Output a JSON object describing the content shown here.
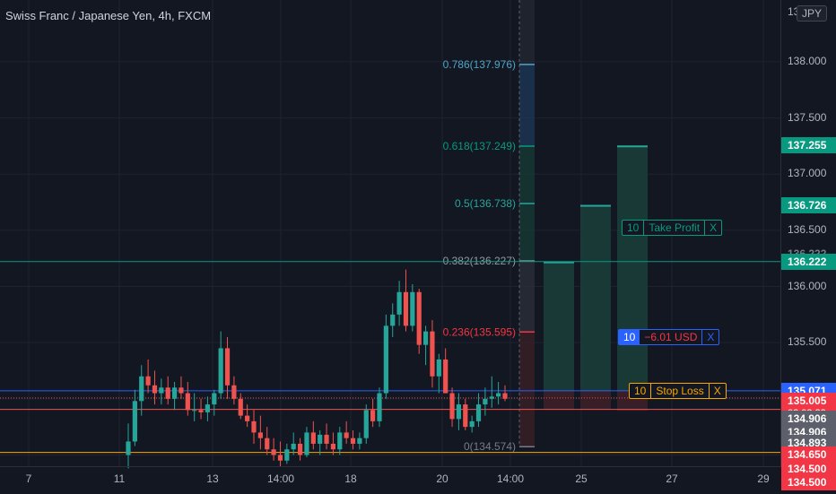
{
  "header": {
    "title": "Swiss Franc / Japanese Yen, 4h, FXCM",
    "currency_button": "JPY"
  },
  "colors": {
    "up": "#26a69a",
    "down": "#ef5350",
    "take_profit": "#089981",
    "stop_loss": "#f7a600",
    "position": "#2962ff",
    "fib_top": "#4fa3c7"
  },
  "chart_data": {
    "type": "candlestick",
    "title": "Swiss Franc / Japanese Yen, 4h, FXCM",
    "y_axis": {
      "ylim": [
        134.4,
        138.55
      ],
      "ticks": [
        "138.000",
        "137.500",
        "137.000",
        "136.500",
        "136.000",
        "135.500"
      ],
      "top_partial_label": "13"
    },
    "x_axis": {
      "ticks": [
        "7",
        "11",
        "13",
        "14:00",
        "18",
        "20",
        "14:00",
        "25",
        "27",
        "29"
      ]
    },
    "candles": [
      {
        "o": 134.5,
        "h": 134.78,
        "l": 134.38,
        "c": 134.62
      },
      {
        "o": 134.62,
        "h": 135.08,
        "l": 134.58,
        "c": 134.98
      },
      {
        "o": 134.98,
        "h": 135.3,
        "l": 134.85,
        "c": 135.2
      },
      {
        "o": 135.2,
        "h": 135.35,
        "l": 135.05,
        "c": 135.12
      },
      {
        "o": 135.12,
        "h": 135.25,
        "l": 134.95,
        "c": 135.05
      },
      {
        "o": 135.05,
        "h": 135.18,
        "l": 134.95,
        "c": 135.1
      },
      {
        "o": 135.1,
        "h": 135.2,
        "l": 134.95,
        "c": 135.0
      },
      {
        "o": 135.0,
        "h": 135.15,
        "l": 134.9,
        "c": 135.1
      },
      {
        "o": 135.1,
        "h": 135.2,
        "l": 135.0,
        "c": 135.05
      },
      {
        "o": 135.05,
        "h": 135.15,
        "l": 134.85,
        "c": 134.9
      },
      {
        "o": 134.9,
        "h": 135.05,
        "l": 134.8,
        "c": 134.9
      },
      {
        "o": 134.9,
        "h": 135.0,
        "l": 134.82,
        "c": 134.88
      },
      {
        "o": 134.88,
        "h": 135.02,
        "l": 134.8,
        "c": 134.95
      },
      {
        "o": 134.95,
        "h": 135.08,
        "l": 134.85,
        "c": 135.05
      },
      {
        "o": 135.05,
        "h": 135.6,
        "l": 135.0,
        "c": 135.45
      },
      {
        "o": 135.45,
        "h": 135.55,
        "l": 135.0,
        "c": 135.12
      },
      {
        "o": 135.12,
        "h": 135.2,
        "l": 134.95,
        "c": 135.0
      },
      {
        "o": 135.0,
        "h": 135.05,
        "l": 134.82,
        "c": 134.85
      },
      {
        "o": 134.85,
        "h": 134.95,
        "l": 134.75,
        "c": 134.8
      },
      {
        "o": 134.8,
        "h": 134.9,
        "l": 134.6,
        "c": 134.7
      },
      {
        "o": 134.7,
        "h": 134.85,
        "l": 134.55,
        "c": 134.65
      },
      {
        "o": 134.65,
        "h": 134.75,
        "l": 134.5,
        "c": 134.55
      },
      {
        "o": 134.55,
        "h": 134.65,
        "l": 134.45,
        "c": 134.5
      },
      {
        "o": 134.5,
        "h": 134.62,
        "l": 134.4,
        "c": 134.45
      },
      {
        "o": 134.45,
        "h": 134.6,
        "l": 134.42,
        "c": 134.55
      },
      {
        "o": 134.55,
        "h": 134.7,
        "l": 134.5,
        "c": 134.6
      },
      {
        "o": 134.6,
        "h": 134.65,
        "l": 134.45,
        "c": 134.5
      },
      {
        "o": 134.5,
        "h": 134.75,
        "l": 134.48,
        "c": 134.7
      },
      {
        "o": 134.7,
        "h": 134.8,
        "l": 134.55,
        "c": 134.6
      },
      {
        "o": 134.6,
        "h": 134.72,
        "l": 134.5,
        "c": 134.68
      },
      {
        "o": 134.68,
        "h": 134.78,
        "l": 134.55,
        "c": 134.6
      },
      {
        "o": 134.6,
        "h": 134.7,
        "l": 134.5,
        "c": 134.55
      },
      {
        "o": 134.55,
        "h": 134.75,
        "l": 134.5,
        "c": 134.7
      },
      {
        "o": 134.7,
        "h": 134.8,
        "l": 134.6,
        "c": 134.65
      },
      {
        "o": 134.65,
        "h": 134.72,
        "l": 134.55,
        "c": 134.6
      },
      {
        "o": 134.6,
        "h": 134.7,
        "l": 134.55,
        "c": 134.65
      },
      {
        "o": 134.65,
        "h": 134.95,
        "l": 134.6,
        "c": 134.9
      },
      {
        "o": 134.9,
        "h": 135.0,
        "l": 134.75,
        "c": 134.8
      },
      {
        "o": 134.8,
        "h": 135.1,
        "l": 134.75,
        "c": 135.05
      },
      {
        "o": 135.05,
        "h": 135.75,
        "l": 135.0,
        "c": 135.65
      },
      {
        "o": 135.65,
        "h": 135.85,
        "l": 135.55,
        "c": 135.75
      },
      {
        "o": 135.75,
        "h": 136.05,
        "l": 135.65,
        "c": 135.95
      },
      {
        "o": 135.95,
        "h": 136.15,
        "l": 135.6,
        "c": 135.65
      },
      {
        "o": 135.65,
        "h": 136.02,
        "l": 135.6,
        "c": 135.95
      },
      {
        "o": 135.95,
        "h": 135.98,
        "l": 135.4,
        "c": 135.48
      },
      {
        "o": 135.48,
        "h": 135.65,
        "l": 135.3,
        "c": 135.6
      },
      {
        "o": 135.6,
        "h": 135.7,
        "l": 135.1,
        "c": 135.2
      },
      {
        "o": 135.2,
        "h": 135.4,
        "l": 135.05,
        "c": 135.35
      },
      {
        "o": 135.35,
        "h": 135.45,
        "l": 135.05,
        "c": 135.05
      },
      {
        "o": 135.05,
        "h": 135.1,
        "l": 134.75,
        "c": 134.82
      },
      {
        "o": 134.82,
        "h": 135.05,
        "l": 134.72,
        "c": 134.95
      },
      {
        "o": 134.95,
        "h": 135.0,
        "l": 134.72,
        "c": 134.75
      },
      {
        "o": 134.75,
        "h": 134.85,
        "l": 134.7,
        "c": 134.8
      },
      {
        "o": 134.8,
        "h": 135.05,
        "l": 134.75,
        "c": 134.95
      },
      {
        "o": 134.95,
        "h": 135.1,
        "l": 134.85,
        "c": 135.0
      },
      {
        "o": 135.0,
        "h": 135.2,
        "l": 134.92,
        "c": 135.02
      },
      {
        "o": 135.02,
        "h": 135.15,
        "l": 134.95,
        "c": 135.05
      },
      {
        "o": 135.05,
        "h": 135.12,
        "l": 134.98,
        "c": 135.0
      }
    ],
    "fibonacci": [
      {
        "label": "0.786(137.976)",
        "price": 137.976,
        "color": "#4fa3c7"
      },
      {
        "label": "0.618(137.249)",
        "price": 137.249,
        "color": "#089981"
      },
      {
        "label": "0.5(136.738)",
        "price": 136.738,
        "color": "#26a69a"
      },
      {
        "label": "0.382(136.227)",
        "price": 136.227,
        "color": "#9598a1"
      },
      {
        "label": "0.236(135.595)",
        "price": 135.595,
        "color": "#f23645"
      },
      {
        "label": "0(134.574)",
        "price": 134.574,
        "color": "#787b86"
      }
    ],
    "forecast_bars": [
      {
        "top": 136.222,
        "bottom": 134.906
      },
      {
        "top": 136.726,
        "bottom": 134.906
      },
      {
        "top": 137.255,
        "bottom": 134.893
      }
    ],
    "lines": {
      "take_profit": 136.222,
      "position": 135.071,
      "stop_loss": 134.65
    },
    "price_labels": [
      {
        "text": "137.255",
        "price": 137.255,
        "bg": "#089981",
        "fg": "#ffffff"
      },
      {
        "text": "136.726",
        "price": 136.726,
        "bg": "#089981",
        "fg": "#ffffff"
      },
      {
        "text": "136.222",
        "price": 136.295,
        "bg": "#131722",
        "fg": "#787b86"
      },
      {
        "text": "136.222",
        "price": 136.222,
        "bg": "#089981",
        "fg": "#ffffff"
      },
      {
        "text": "135.071",
        "price": 135.071,
        "bg": "#2962ff",
        "fg": "#ffffff"
      },
      {
        "text": "135.005",
        "price": 134.98,
        "bg": "#f23645",
        "fg": "#ffffff",
        "sub": "02:03:39"
      },
      {
        "text": "134.906",
        "price": 134.82,
        "bg": "#5d606b",
        "fg": "#ffffff"
      },
      {
        "text": "134.906",
        "price": 134.7,
        "bg": "#5d606b",
        "fg": "#ffffff"
      },
      {
        "text": "134.893",
        "price": 134.61,
        "bg": "#5d606b",
        "fg": "#ffffff"
      },
      {
        "text": "134.650",
        "price": 134.5,
        "bg": "#f23645",
        "fg": "#ffffff"
      },
      {
        "text": "134.500",
        "price": 134.375,
        "bg": "#f23645",
        "fg": "#ffffff"
      },
      {
        "text": "134.500",
        "price": 134.255,
        "bg": "#f23645",
        "fg": "#ffffff"
      }
    ]
  },
  "orders": {
    "take_profit": {
      "qty": "10",
      "label": "Take Profit",
      "close": "X"
    },
    "position": {
      "qty": "10",
      "label": "−6.01 USD",
      "close": "X"
    },
    "stop_loss": {
      "qty": "10",
      "label": "Stop Loss",
      "close": "X"
    }
  }
}
